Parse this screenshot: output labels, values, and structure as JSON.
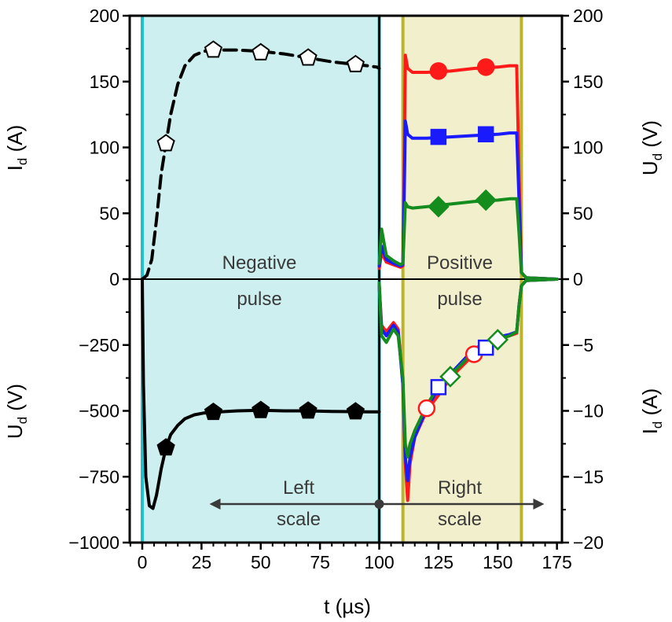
{
  "chart_data": {
    "type": "line",
    "xlabel": "t (µs)",
    "xlim": [
      -5,
      175
    ],
    "x_ticks": [
      0,
      25,
      50,
      75,
      100,
      125,
      150,
      175
    ],
    "axes": {
      "upper_left": {
        "label_main": "I",
        "label_sub": "d",
        "label_unit": " (A)",
        "ticks": [
          0,
          50,
          100,
          150,
          200
        ]
      },
      "lower_left": {
        "label_main": "U",
        "label_sub": "d",
        "label_unit": " (V)",
        "ticks": [
          -1000,
          -750,
          -500,
          -250
        ]
      },
      "upper_right": {
        "label_main": "U",
        "label_sub": "d",
        "label_unit": " (V)",
        "ticks": [
          0,
          50,
          100,
          150,
          200
        ]
      },
      "lower_right": {
        "label_main": "I",
        "label_sub": "d",
        "label_unit": " (A)",
        "ticks": [
          -20,
          -15,
          -10,
          -5
        ]
      }
    },
    "annotations": {
      "negative": "Negative",
      "negative_2": "pulse",
      "positive": "Positive",
      "positive_2": "pulse",
      "left_scale": "Left",
      "left_scale_2": "scale",
      "right_scale": "Right",
      "right_scale_2": "scale"
    },
    "regions": [
      {
        "x0": 0,
        "x1": 100,
        "color": "#cdeff0",
        "edge": "#22c0c8"
      },
      {
        "x0": 110,
        "x1": 160,
        "color": "#f2f0cc",
        "edge": "#bcb52c"
      }
    ],
    "colors": {
      "red": "#ff1a1a",
      "blue": "#1a1aff",
      "green": "#148c1e",
      "black": "#000000"
    },
    "series": [
      {
        "axis": "upper_left",
        "style": "dashed",
        "color": "#000000",
        "marker": "pentagon-open",
        "x": [
          0,
          2,
          4,
          6,
          8,
          10,
          12,
          15,
          18,
          22,
          26,
          30,
          40,
          50,
          60,
          70,
          80,
          90,
          95,
          99,
          100
        ],
        "y": [
          0,
          3,
          15,
          45,
          80,
          103,
          125,
          148,
          162,
          170,
          173,
          174,
          174,
          173,
          171,
          168,
          165,
          163,
          162,
          161,
          160
        ],
        "markers_x": [
          10,
          30,
          50,
          70,
          90
        ],
        "markers_y": [
          103,
          174,
          172,
          168,
          163
        ]
      },
      {
        "axis": "lower_left",
        "style": "solid",
        "color": "#000000",
        "marker": "pentagon-filled",
        "x": [
          0,
          0.5,
          1.5,
          3,
          4.5,
          6,
          8,
          10,
          12,
          15,
          18,
          22,
          26,
          30,
          40,
          50,
          60,
          70,
          80,
          90,
          95,
          100
        ],
        "y": [
          0,
          -400,
          -750,
          -860,
          -870,
          -820,
          -720,
          -640,
          -590,
          -555,
          -530,
          -515,
          -508,
          -505,
          -500,
          -498,
          -500,
          -500,
          -502,
          -503,
          -504,
          -504
        ],
        "markers_x": [
          10,
          30,
          50,
          70,
          90
        ],
        "markers_y": [
          -640,
          -505,
          -498,
          -500,
          -503
        ]
      },
      {
        "axis": "upper_right",
        "style": "solid",
        "color": "#ff1a1a",
        "marker": "circle-filled",
        "x": [
          100,
          101,
          103,
          106,
          109,
          110,
          110.5,
          111,
          112,
          114,
          120,
          130,
          140,
          150,
          155,
          158,
          159,
          160,
          162,
          175
        ],
        "y": [
          8,
          20,
          13,
          11,
          9,
          10,
          80,
          170,
          160,
          157,
          157,
          158,
          160,
          161,
          162,
          162,
          80,
          5,
          1,
          0
        ],
        "markers_x": [
          125,
          145
        ],
        "markers_y": [
          158,
          161
        ]
      },
      {
        "axis": "upper_right",
        "style": "solid",
        "color": "#1a1aff",
        "marker": "square-filled",
        "x": [
          100,
          101,
          103,
          106,
          109,
          110,
          110.5,
          111,
          112,
          114,
          120,
          130,
          140,
          150,
          155,
          158,
          159,
          160,
          162,
          175
        ],
        "y": [
          10,
          25,
          15,
          12,
          10,
          11,
          60,
          120,
          110,
          107,
          107,
          108,
          109,
          110,
          111,
          111,
          60,
          5,
          1,
          0
        ],
        "markers_x": [
          125,
          145
        ],
        "markers_y": [
          108,
          110
        ]
      },
      {
        "axis": "upper_right",
        "style": "solid",
        "color": "#148c1e",
        "marker": "diamond-filled",
        "x": [
          100,
          101,
          103,
          106,
          109,
          110,
          110.5,
          111,
          112,
          114,
          120,
          130,
          140,
          150,
          155,
          158,
          159,
          160,
          162,
          175
        ],
        "y": [
          12,
          38,
          18,
          14,
          11,
          12,
          35,
          58,
          55,
          54,
          55,
          57,
          59,
          60,
          61,
          61,
          35,
          5,
          1,
          0
        ],
        "markers_x": [
          125,
          145
        ],
        "markers_y": [
          55,
          60
        ]
      },
      {
        "axis": "lower_right",
        "style": "solid",
        "color": "#ff1a1a",
        "marker": "circle-open",
        "x": [
          100,
          101,
          103,
          106,
          108,
          110,
          111,
          112,
          113,
          115,
          120,
          125,
          130,
          140,
          150,
          155,
          158,
          159,
          160,
          162,
          175
        ],
        "y": [
          -0.5,
          -3.5,
          -4.0,
          -3.3,
          -3.8,
          -8.0,
          -14.0,
          -16.8,
          -14.0,
          -12.0,
          -10.0,
          -8.8,
          -7.5,
          -5.7,
          -4.6,
          -4.3,
          -4.1,
          -2.0,
          -0.5,
          -0.1,
          0
        ],
        "markers_x": [
          120,
          140
        ],
        "markers_y": [
          -9.8,
          -5.7
        ]
      },
      {
        "axis": "lower_right",
        "style": "solid",
        "color": "#1a1aff",
        "marker": "square-open",
        "x": [
          100,
          101,
          103,
          106,
          108,
          110,
          111,
          112,
          113,
          115,
          120,
          125,
          130,
          140,
          150,
          155,
          158,
          159,
          160,
          162,
          175
        ],
        "y": [
          -0.5,
          -3.8,
          -4.3,
          -3.5,
          -4.0,
          -8.0,
          -13.5,
          -15.3,
          -13.5,
          -12.0,
          -9.8,
          -8.3,
          -7.2,
          -5.3,
          -4.4,
          -4.2,
          -4.0,
          -2.0,
          -0.5,
          -0.1,
          0
        ],
        "markers_x": [
          125,
          145
        ],
        "markers_y": [
          -8.2,
          -5.2
        ]
      },
      {
        "axis": "lower_right",
        "style": "solid",
        "color": "#148c1e",
        "marker": "diamond-open",
        "x": [
          100,
          101,
          103,
          106,
          108,
          110,
          111,
          112,
          113,
          115,
          120,
          125,
          130,
          140,
          150,
          155,
          158,
          159,
          160,
          162,
          175
        ],
        "y": [
          -0.3,
          -4.3,
          -4.8,
          -3.8,
          -4.3,
          -7.5,
          -12.5,
          -13.5,
          -12.5,
          -11.5,
          -9.6,
          -8.1,
          -7.3,
          -5.5,
          -4.6,
          -4.3,
          -4.0,
          -2.0,
          -0.5,
          -0.1,
          0
        ],
        "markers_x": [
          130,
          150
        ],
        "markers_y": [
          -7.4,
          -4.6
        ]
      }
    ]
  }
}
